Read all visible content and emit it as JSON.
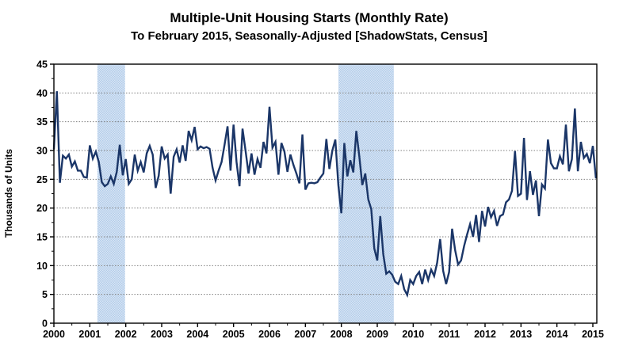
{
  "title": "Multiple-Unit Housing Starts (Monthly Rate)",
  "subtitle": "To February 2015, Seasonally-Adjusted [ShadowStats, Census]",
  "chart_data": {
    "type": "line",
    "title": "Multiple-Unit Housing Starts (Monthly Rate)",
    "subtitle": "To February 2015, Seasonally-Adjusted [ShadowStats, Census]",
    "xlabel": "",
    "ylabel": "Thousands of Units",
    "ylim": [
      0,
      45
    ],
    "ytick_step": 5,
    "ytick_labels": [
      "0",
      "5",
      "10",
      "15",
      "20",
      "25",
      "30",
      "35",
      "40",
      "45"
    ],
    "x_start_year": 2000,
    "x_end_year": 2015,
    "x_tick_labels": [
      "2000",
      "2001",
      "2002",
      "2003",
      "2004",
      "2005",
      "2006",
      "2007",
      "2008",
      "2009",
      "2010",
      "2011",
      "2012",
      "2013",
      "2014",
      "2015"
    ],
    "x_months_start": "2000-01",
    "x_months_end": "2015-02",
    "grid": "horizontal-dotted",
    "legend_position": "none",
    "line_color": "#1b3668",
    "gridline_color": "#808080",
    "recession_band_color": "#c3d7ee",
    "recession_bands": [
      {
        "start": 2001.21,
        "end": 2001.98
      },
      {
        "start": 2007.92,
        "end": 2009.46
      }
    ],
    "series": [
      {
        "name": "Multiple-unit housing starts, monthly rate (thousands of units)",
        "monthly_values_from_jan_2000": [
          30.3,
          40.3,
          24.4,
          29.1,
          28.6,
          29.3,
          27.2,
          28.1,
          26.5,
          26.5,
          25.4,
          25.3,
          30.9,
          28.6,
          29.8,
          28.0,
          24.5,
          23.8,
          24.2,
          25.5,
          24.2,
          26.3,
          31.0,
          25.7,
          28.5,
          24.2,
          25.0,
          29.3,
          26.5,
          28.0,
          26.2,
          29.5,
          30.8,
          29.3,
          23.5,
          25.6,
          30.7,
          28.6,
          29.3,
          22.5,
          28.9,
          30.2,
          27.9,
          30.9,
          28.2,
          33.4,
          31.8,
          34.1,
          30.2,
          30.7,
          30.4,
          30.6,
          30.3,
          27.0,
          24.8,
          26.5,
          28.0,
          31.0,
          34.2,
          26.5,
          34.5,
          28.0,
          23.8,
          33.8,
          30.0,
          26.0,
          29.5,
          25.8,
          28.5,
          27.0,
          31.5,
          29.5,
          37.6,
          30.5,
          31.5,
          25.8,
          31.3,
          29.8,
          26.3,
          29.3,
          27.5,
          26.0,
          24.3,
          32.8,
          23.2,
          24.3,
          24.4,
          24.3,
          24.5,
          25.3,
          26.0,
          32.0,
          26.8,
          30.0,
          31.9,
          24.0,
          19.1,
          31.3,
          25.5,
          28.3,
          26.2,
          33.4,
          29.0,
          24.0,
          26.0,
          21.5,
          19.8,
          13.0,
          10.9,
          18.6,
          12.0,
          8.6,
          9.0,
          8.4,
          7.2,
          6.8,
          8.2,
          5.9,
          4.9,
          7.5,
          6.8,
          8.2,
          8.9,
          6.8,
          9.3,
          7.5,
          9.3,
          8.2,
          10.5,
          14.6,
          9.1,
          6.8,
          8.9,
          16.4,
          12.7,
          10.2,
          10.9,
          13.4,
          15.4,
          17.2,
          15.0,
          18.8,
          14.1,
          19.5,
          16.8,
          20.2,
          18.4,
          19.5,
          16.9,
          18.6,
          18.9,
          21.0,
          21.5,
          23.0,
          29.9,
          22.1,
          22.5,
          32.2,
          21.4,
          26.4,
          22.3,
          24.8,
          18.6,
          24.1,
          23.4,
          31.9,
          27.8,
          26.9,
          26.9,
          29.0,
          27.6,
          34.5,
          26.4,
          28.5,
          37.3,
          26.4,
          31.5,
          28.7,
          29.4,
          27.8,
          30.8,
          25.3
        ]
      }
    ]
  }
}
